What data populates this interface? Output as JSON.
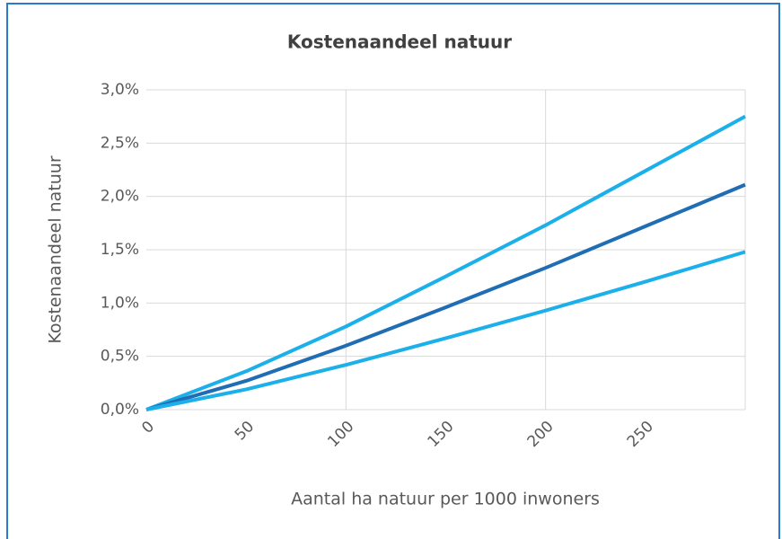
{
  "chart_data": {
    "type": "line",
    "title": "Kostenaandeel natuur",
    "x_label": "Aantal ha natuur per 1000 inwoners",
    "y_label": "Kostenaandeel natuur",
    "x": [
      0,
      50,
      100,
      150,
      200,
      250,
      300
    ],
    "series": [
      {
        "color": "#1cb0ea",
        "values": [
          0,
          0.36,
          0.78,
          1.25,
          1.73,
          2.24,
          2.75
        ]
      },
      {
        "color": "#1f6db4",
        "values": [
          0,
          0.27,
          0.6,
          0.96,
          1.33,
          1.72,
          2.11
        ]
      },
      {
        "color": "#1cb0ea",
        "values": [
          0,
          0.19,
          0.42,
          0.67,
          0.93,
          1.2,
          1.48
        ]
      }
    ],
    "xlim": [
      0,
      300
    ],
    "xticks": [
      0,
      50,
      100,
      150,
      200,
      250
    ],
    "ylim": [
      0,
      3
    ],
    "yticks": [
      {
        "value": 0,
        "label": "0,0%"
      },
      {
        "value": 0.5,
        "label": "0,5%"
      },
      {
        "value": 1,
        "label": "1,0%"
      },
      {
        "value": 1.5,
        "label": "1,5%"
      },
      {
        "value": 2,
        "label": "2,0%"
      },
      {
        "value": 2.5,
        "label": "2,5%"
      },
      {
        "value": 3,
        "label": "3,0%"
      }
    ],
    "grid": true
  }
}
